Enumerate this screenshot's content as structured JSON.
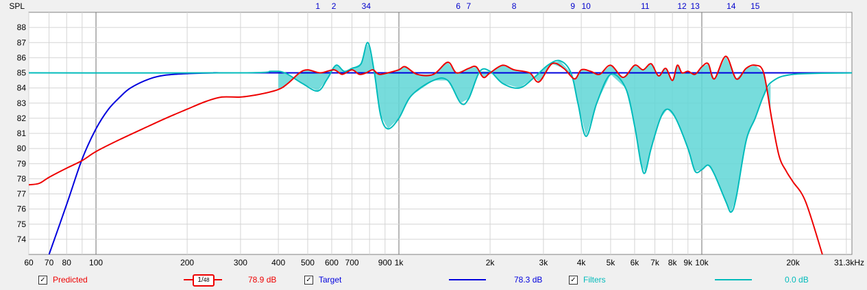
{
  "chart_data": {
    "type": "line",
    "ylabel": "SPL",
    "x_scale": "log",
    "xlim": [
      60,
      31300
    ],
    "ylim": [
      73,
      89
    ],
    "grid": true,
    "x_ticks": [
      {
        "v": 60,
        "label": "60"
      },
      {
        "v": 70,
        "label": "70"
      },
      {
        "v": 80,
        "label": "80"
      },
      {
        "v": 100,
        "label": "100"
      },
      {
        "v": 200,
        "label": "200"
      },
      {
        "v": 300,
        "label": "300"
      },
      {
        "v": 400,
        "label": "400"
      },
      {
        "v": 500,
        "label": "500"
      },
      {
        "v": 600,
        "label": "600"
      },
      {
        "v": 700,
        "label": "700"
      },
      {
        "v": 900,
        "label": "900"
      },
      {
        "v": 1000,
        "label": "1k"
      },
      {
        "v": 2000,
        "label": "2k"
      },
      {
        "v": 3000,
        "label": "3k"
      },
      {
        "v": 4000,
        "label": "4k"
      },
      {
        "v": 5000,
        "label": "5k"
      },
      {
        "v": 6000,
        "label": "6k"
      },
      {
        "v": 7000,
        "label": "7k"
      },
      {
        "v": 8000,
        "label": "8k"
      },
      {
        "v": 9000,
        "label": "9k"
      },
      {
        "v": 10000,
        "label": "10k"
      },
      {
        "v": 20000,
        "label": "20k"
      },
      {
        "v": 31300,
        "label": "31.3kHz"
      }
    ],
    "y_ticks": [
      74,
      75,
      76,
      77,
      78,
      79,
      80,
      81,
      82,
      83,
      84,
      85,
      86,
      87,
      88
    ],
    "filter_markers": [
      {
        "label": "1",
        "f": 540
      },
      {
        "label": "2",
        "f": 610
      },
      {
        "label": "34",
        "f": 780
      },
      {
        "label": "6",
        "f": 1570
      },
      {
        "label": "7",
        "f": 1700
      },
      {
        "label": "8",
        "f": 2400
      },
      {
        "label": "9",
        "f": 3750
      },
      {
        "label": "10",
        "f": 4150
      },
      {
        "label": "11",
        "f": 6500
      },
      {
        "label": "12",
        "f": 8600
      },
      {
        "label": "13",
        "f": 9500
      },
      {
        "label": "14",
        "f": 12500
      },
      {
        "label": "15",
        "f": 15000
      }
    ],
    "series": [
      {
        "name": "Predicted",
        "color": "#ee0000",
        "points": [
          [
            60,
            77.6
          ],
          [
            65,
            77.7
          ],
          [
            70,
            78.1
          ],
          [
            80,
            78.7
          ],
          [
            90,
            79.2
          ],
          [
            100,
            79.8
          ],
          [
            120,
            80.6
          ],
          [
            150,
            81.5
          ],
          [
            170,
            82.0
          ],
          [
            200,
            82.6
          ],
          [
            230,
            83.1
          ],
          [
            260,
            83.4
          ],
          [
            300,
            83.4
          ],
          [
            350,
            83.6
          ],
          [
            400,
            83.9
          ],
          [
            430,
            84.3
          ],
          [
            470,
            85.0
          ],
          [
            500,
            85.2
          ],
          [
            550,
            85.0
          ],
          [
            610,
            85.2
          ],
          [
            650,
            84.9
          ],
          [
            700,
            85.2
          ],
          [
            740,
            84.9
          ],
          [
            780,
            85.0
          ],
          [
            820,
            85.2
          ],
          [
            860,
            84.9
          ],
          [
            920,
            85.0
          ],
          [
            1000,
            85.2
          ],
          [
            1050,
            85.4
          ],
          [
            1150,
            84.9
          ],
          [
            1300,
            84.9
          ],
          [
            1450,
            85.7
          ],
          [
            1550,
            85.0
          ],
          [
            1700,
            85.3
          ],
          [
            1800,
            85.4
          ],
          [
            1900,
            84.7
          ],
          [
            2000,
            85.0
          ],
          [
            2200,
            85.5
          ],
          [
            2400,
            85.2
          ],
          [
            2700,
            85.0
          ],
          [
            2900,
            84.4
          ],
          [
            3200,
            85.6
          ],
          [
            3500,
            85.3
          ],
          [
            3800,
            84.6
          ],
          [
            4000,
            85.2
          ],
          [
            4300,
            85.1
          ],
          [
            4600,
            84.9
          ],
          [
            5000,
            85.5
          ],
          [
            5500,
            84.7
          ],
          [
            6000,
            85.5
          ],
          [
            6400,
            85.2
          ],
          [
            6800,
            85.6
          ],
          [
            7200,
            84.8
          ],
          [
            7600,
            85.3
          ],
          [
            8000,
            84.5
          ],
          [
            8300,
            85.5
          ],
          [
            8600,
            85.0
          ],
          [
            9000,
            85.1
          ],
          [
            9500,
            84.9
          ],
          [
            10000,
            85.4
          ],
          [
            10500,
            85.6
          ],
          [
            11000,
            84.6
          ],
          [
            12000,
            86.1
          ],
          [
            13000,
            84.6
          ],
          [
            14000,
            85.3
          ],
          [
            15000,
            85.5
          ],
          [
            16000,
            85.0
          ],
          [
            17000,
            82.0
          ],
          [
            18000,
            79.5
          ],
          [
            19000,
            78.5
          ],
          [
            20000,
            77.8
          ],
          [
            22000,
            76.5
          ],
          [
            25000,
            73.0
          ]
        ]
      },
      {
        "name": "Target",
        "color": "#0000dd",
        "points": [
          [
            70,
            73.0
          ],
          [
            80,
            76.3
          ],
          [
            90,
            79.3
          ],
          [
            100,
            81.3
          ],
          [
            110,
            82.6
          ],
          [
            120,
            83.4
          ],
          [
            130,
            84.0
          ],
          [
            150,
            84.6
          ],
          [
            170,
            84.85
          ],
          [
            200,
            84.95
          ],
          [
            250,
            85.0
          ],
          [
            400,
            85.0
          ],
          [
            31300,
            85.0
          ]
        ]
      },
      {
        "name": "Filters",
        "color": "#00bbbb",
        "points": [
          [
            60,
            85.0
          ],
          [
            300,
            85.0
          ],
          [
            380,
            85.1
          ],
          [
            420,
            85.0
          ],
          [
            480,
            84.3
          ],
          [
            540,
            83.8
          ],
          [
            580,
            84.6
          ],
          [
            620,
            85.5
          ],
          [
            660,
            85.1
          ],
          [
            700,
            85.3
          ],
          [
            750,
            85.6
          ],
          [
            790,
            87.0
          ],
          [
            830,
            85.0
          ],
          [
            870,
            82.2
          ],
          [
            920,
            81.3
          ],
          [
            1000,
            82.0
          ],
          [
            1100,
            83.5
          ],
          [
            1300,
            84.5
          ],
          [
            1450,
            84.5
          ],
          [
            1600,
            83.0
          ],
          [
            1700,
            83.3
          ],
          [
            1850,
            85.1
          ],
          [
            2000,
            85.1
          ],
          [
            2200,
            84.3
          ],
          [
            2500,
            84.0
          ],
          [
            2800,
            84.7
          ],
          [
            3100,
            85.5
          ],
          [
            3400,
            85.8
          ],
          [
            3700,
            85.0
          ],
          [
            3900,
            83.0
          ],
          [
            4150,
            80.8
          ],
          [
            4500,
            83.0
          ],
          [
            5000,
            84.9
          ],
          [
            5600,
            84.0
          ],
          [
            6000,
            81.5
          ],
          [
            6300,
            79.0
          ],
          [
            6500,
            78.4
          ],
          [
            6800,
            80.0
          ],
          [
            7300,
            82.0
          ],
          [
            7700,
            82.6
          ],
          [
            8200,
            82.0
          ],
          [
            9000,
            80.0
          ],
          [
            9500,
            78.5
          ],
          [
            10000,
            78.6
          ],
          [
            10500,
            78.9
          ],
          [
            11000,
            78.3
          ],
          [
            12000,
            76.5
          ],
          [
            12500,
            75.8
          ],
          [
            13000,
            76.8
          ],
          [
            14000,
            80.5
          ],
          [
            15000,
            82.0
          ],
          [
            16000,
            83.5
          ],
          [
            17000,
            84.4
          ],
          [
            20000,
            84.9
          ],
          [
            31300,
            85.0
          ]
        ]
      }
    ]
  },
  "legend": {
    "predicted": {
      "label": "Predicted",
      "value": "78.9 dB",
      "checkmark": "✓",
      "smoothing_num": "1",
      "smoothing_den": "48"
    },
    "target": {
      "label": "Target",
      "value": "78.3 dB",
      "checkmark": "✓"
    },
    "filters": {
      "label": "Filters",
      "value": "0.0 dB",
      "checkmark": "✓"
    }
  }
}
